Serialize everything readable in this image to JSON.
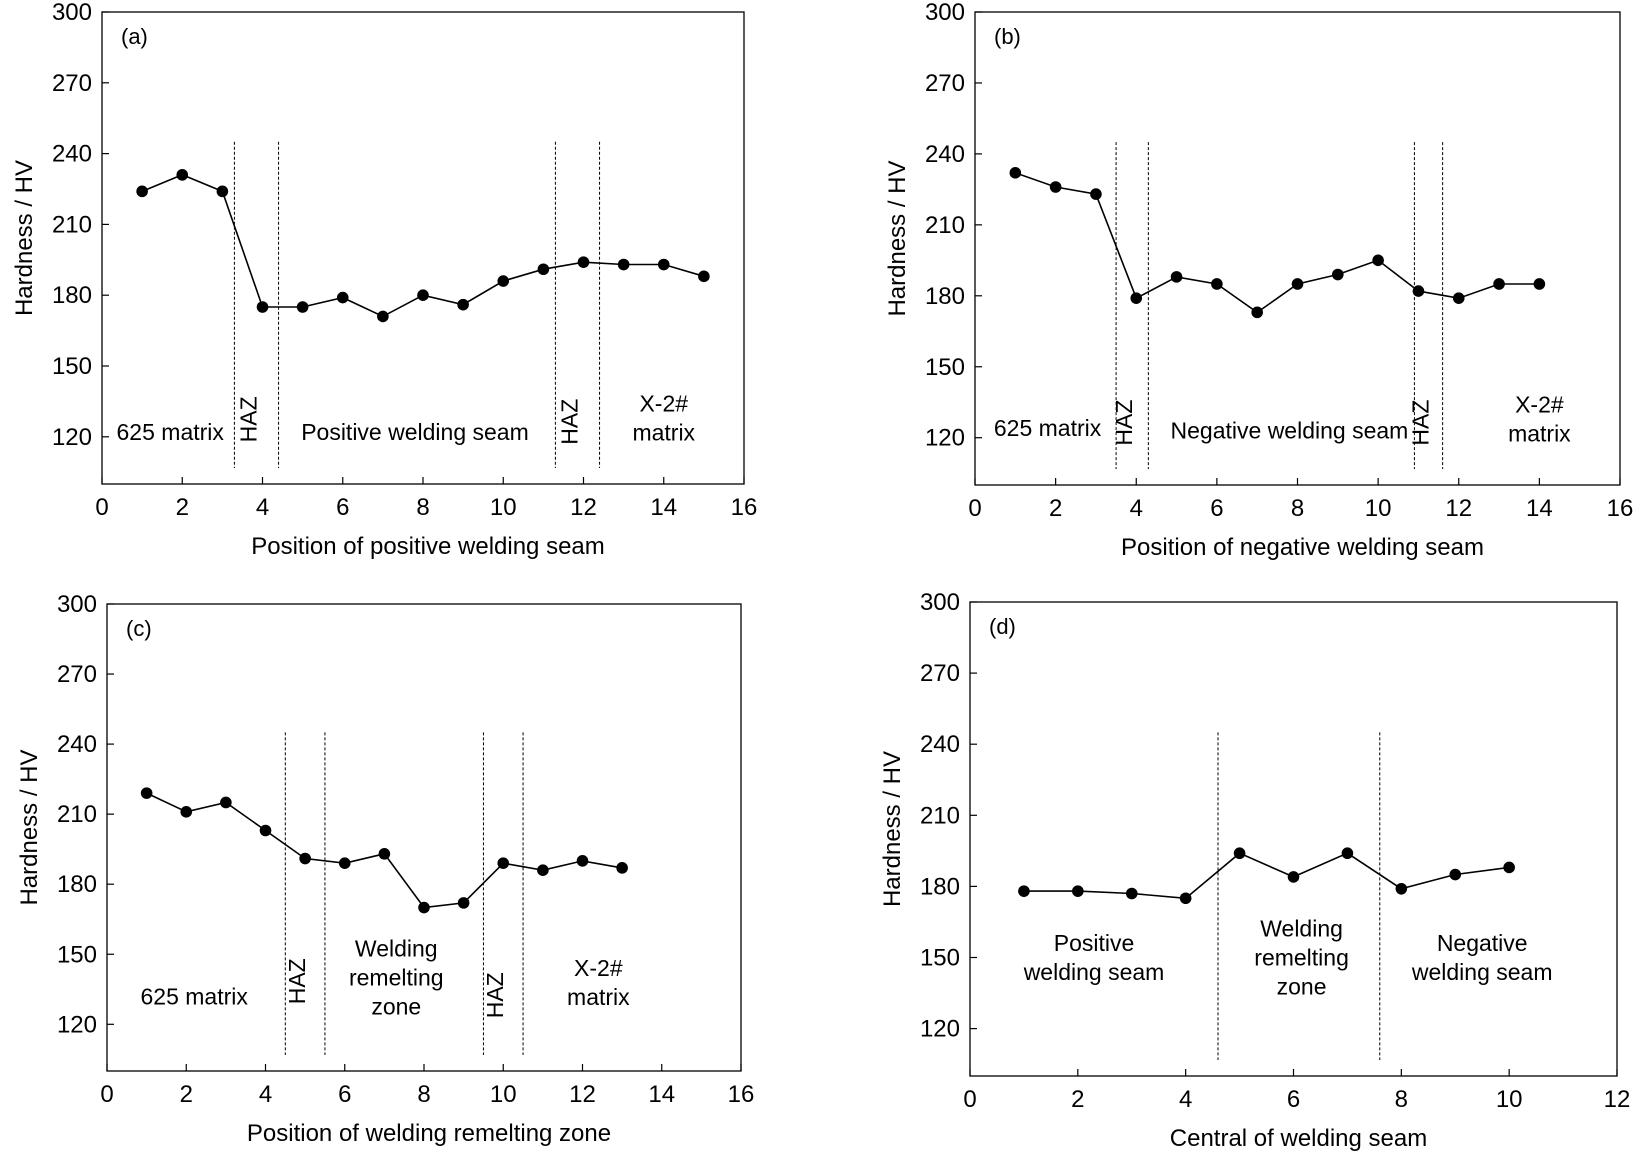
{
  "chart_data": [
    {
      "type": "line",
      "panel_label": "(a)",
      "xlabel": "Position of positive welding seam",
      "ylabel": "Hardness / HV",
      "xlim": [
        0,
        16
      ],
      "ylim": [
        100,
        300
      ],
      "xticks": [
        "0",
        "2",
        "4",
        "6",
        "8",
        "10",
        "12",
        "14",
        "16"
      ],
      "yticks": [
        "120",
        "150",
        "180",
        "210",
        "240",
        "270",
        "300"
      ],
      "series": [
        {
          "x": [
            1,
            2,
            3,
            4,
            5,
            6,
            7,
            8,
            9,
            10,
            11,
            12,
            13,
            14,
            15
          ],
          "y": [
            224,
            231,
            224,
            175,
            175,
            179,
            171,
            180,
            176,
            186,
            191,
            194,
            193,
            193,
            188
          ]
        }
      ],
      "boundaries": [
        3.3,
        4.4,
        11.3,
        12.4
      ],
      "zones": [
        {
          "x": 1.7,
          "y": 122,
          "lines": [
            "625 matrix"
          ],
          "vertical": false
        },
        {
          "x": 3.85,
          "y": 124,
          "lines": [
            "HAZ"
          ],
          "vertical": true
        },
        {
          "x": 7.8,
          "y": 122,
          "lines": [
            "Positive welding seam"
          ],
          "vertical": false
        },
        {
          "x": 11.85,
          "y": 123,
          "lines": [
            "HAZ"
          ],
          "vertical": true
        },
        {
          "x": 14.0,
          "y": 128,
          "lines": [
            "X-2#",
            "matrix"
          ],
          "vertical": false
        }
      ]
    },
    {
      "type": "line",
      "panel_label": "(b)",
      "xlabel": "Position of negative welding seam",
      "ylabel": "Hardness / HV",
      "xlim": [
        0,
        16
      ],
      "ylim": [
        100,
        300
      ],
      "xticks": [
        "0",
        "2",
        "4",
        "6",
        "8",
        "10",
        "12",
        "14",
        "16"
      ],
      "yticks": [
        "120",
        "150",
        "180",
        "210",
        "240",
        "270",
        "300"
      ],
      "series": [
        {
          "x": [
            1,
            2,
            3,
            4,
            5,
            6,
            7,
            8,
            9,
            10,
            11,
            12,
            13,
            14
          ],
          "y": [
            232,
            226,
            223,
            179,
            188,
            185,
            173,
            185,
            189,
            195,
            182,
            179,
            185,
            185
          ]
        }
      ],
      "boundaries": [
        3.5,
        4.3,
        10.9,
        11.6
      ],
      "zones": [
        {
          "x": 1.8,
          "y": 124,
          "lines": [
            "625 matrix"
          ],
          "vertical": false
        },
        {
          "x": 3.9,
          "y": 123,
          "lines": [
            "HAZ"
          ],
          "vertical": true
        },
        {
          "x": 7.8,
          "y": 123,
          "lines": [
            "Negative welding seam"
          ],
          "vertical": false
        },
        {
          "x": 11.25,
          "y": 123,
          "lines": [
            "HAZ"
          ],
          "vertical": true
        },
        {
          "x": 14.0,
          "y": 128,
          "lines": [
            "X-2#",
            "matrix"
          ],
          "vertical": false
        }
      ]
    },
    {
      "type": "line",
      "panel_label": "(c)",
      "xlabel": "Position of welding remelting zone",
      "ylabel": "Hardness / HV",
      "xlim": [
        0,
        16
      ],
      "ylim": [
        100,
        300
      ],
      "xticks": [
        "0",
        "2",
        "4",
        "6",
        "8",
        "10",
        "12",
        "14",
        "16"
      ],
      "yticks": [
        "120",
        "150",
        "180",
        "210",
        "240",
        "270",
        "300"
      ],
      "series": [
        {
          "x": [
            1,
            2,
            3,
            4,
            5,
            6,
            7,
            8,
            9,
            10,
            11,
            12,
            13
          ],
          "y": [
            219,
            211,
            215,
            203,
            191,
            189,
            193,
            170,
            172,
            189,
            186,
            190,
            187
          ]
        }
      ],
      "boundaries": [
        4.5,
        5.5,
        9.5,
        10.5
      ],
      "zones": [
        {
          "x": 2.2,
          "y": 132,
          "lines": [
            "625 matrix"
          ],
          "vertical": false
        },
        {
          "x": 5.0,
          "y": 135,
          "lines": [
            "HAZ"
          ],
          "vertical": true
        },
        {
          "x": 7.3,
          "y": 140,
          "lines": [
            "Welding",
            "remelting",
            "zone"
          ],
          "vertical": false
        },
        {
          "x": 10.0,
          "y": 129,
          "lines": [
            "HAZ"
          ],
          "vertical": true
        },
        {
          "x": 12.4,
          "y": 138,
          "lines": [
            "X-2#",
            "matrix"
          ],
          "vertical": false
        }
      ]
    },
    {
      "type": "line",
      "panel_label": "(d)",
      "xlabel": "Central of welding seam",
      "ylabel": "Hardness / HV",
      "xlim": [
        0,
        12
      ],
      "ylim": [
        100,
        300
      ],
      "xticks": [
        "0",
        "2",
        "4",
        "6",
        "8",
        "10",
        "12"
      ],
      "yticks": [
        "120",
        "150",
        "180",
        "210",
        "240",
        "270",
        "300"
      ],
      "series": [
        {
          "x": [
            1,
            2,
            3,
            4,
            5,
            6,
            7,
            8,
            9,
            10
          ],
          "y": [
            178,
            178,
            177,
            175,
            194,
            184,
            194,
            179,
            185,
            188
          ]
        }
      ],
      "boundaries": [
        4.6,
        7.6
      ],
      "zones": [
        {
          "x": 2.3,
          "y": 150,
          "lines": [
            "Positive",
            "welding seam"
          ],
          "vertical": false
        },
        {
          "x": 6.15,
          "y": 150,
          "lines": [
            "Welding",
            "remelting",
            "zone"
          ],
          "vertical": false
        },
        {
          "x": 9.5,
          "y": 150,
          "lines": [
            "Negative",
            "welding seam"
          ],
          "vertical": false
        }
      ]
    }
  ]
}
